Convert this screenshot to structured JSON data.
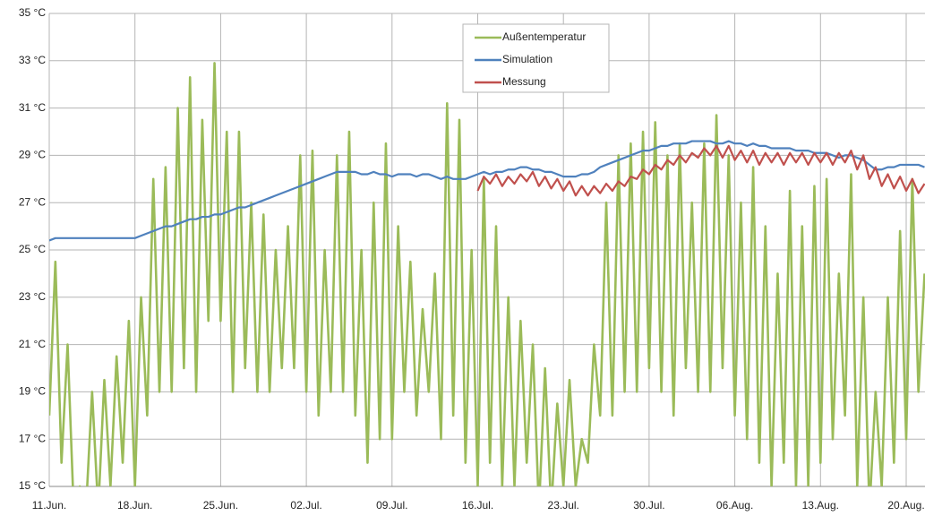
{
  "chart_data": {
    "type": "line",
    "categories": [
      "11.Jun.",
      null,
      null,
      null,
      null,
      null,
      null,
      null,
      null,
      null,
      null,
      null,
      null,
      null,
      "18.Jun.",
      null,
      null,
      null,
      null,
      null,
      null,
      null,
      null,
      null,
      null,
      null,
      null,
      null,
      "25.Jun.",
      null,
      null,
      null,
      null,
      null,
      null,
      null,
      null,
      null,
      null,
      null,
      null,
      null,
      "02.Jul.",
      null,
      null,
      null,
      null,
      null,
      null,
      null,
      null,
      null,
      null,
      null,
      null,
      null,
      "09.Jul.",
      null,
      null,
      null,
      null,
      null,
      null,
      null,
      null,
      null,
      null,
      null,
      null,
      null,
      "16.Jul.",
      null,
      null,
      null,
      null,
      null,
      null,
      null,
      null,
      null,
      null,
      null,
      null,
      null,
      "23.Jul.",
      null,
      null,
      null,
      null,
      null,
      null,
      null,
      null,
      null,
      null,
      null,
      null,
      null,
      "30.Jul.",
      null,
      null,
      null,
      null,
      null,
      null,
      null,
      null,
      null,
      null,
      null,
      null,
      null,
      "06.Aug.",
      null,
      null,
      null,
      null,
      null,
      null,
      null,
      null,
      null,
      null,
      null,
      null,
      null,
      "13.Aug.",
      null,
      null,
      null,
      null,
      null,
      null,
      null,
      null,
      null,
      null,
      null,
      null,
      null,
      "20.Aug.",
      null,
      null,
      null
    ],
    "series": [
      {
        "name": "Außentemperatur",
        "color": "#9bbb59",
        "values": [
          18,
          24.5,
          16,
          21,
          14,
          15,
          14,
          19,
          14,
          19.5,
          15,
          20.5,
          16,
          22,
          15,
          23,
          18,
          28,
          19,
          28.5,
          19,
          31,
          20,
          32.3,
          19,
          30.5,
          22,
          32.9,
          22,
          30,
          19,
          30,
          20,
          27,
          19,
          26.5,
          19,
          25,
          20,
          26,
          20,
          29,
          19,
          29.2,
          18,
          25,
          19,
          29,
          19,
          30,
          18,
          25,
          16,
          27,
          17,
          29.5,
          17,
          26,
          19,
          24.5,
          18,
          22.5,
          19,
          24,
          17,
          31.2,
          18,
          30.5,
          16,
          25,
          15,
          28,
          16,
          26,
          15,
          23,
          15,
          22,
          16,
          21,
          14,
          20,
          14,
          18.5,
          15,
          19.5,
          15,
          17,
          16,
          21,
          18,
          27,
          18,
          29,
          19,
          29.5,
          19,
          30,
          20,
          30.4,
          19,
          29,
          18,
          29.5,
          20,
          27,
          19,
          29.5,
          19,
          30.7,
          20,
          29,
          18,
          27,
          17,
          28.5,
          16,
          26,
          15,
          24,
          16,
          27.5,
          15,
          26,
          15,
          27.7,
          16,
          28,
          17,
          24,
          18,
          28.2,
          15,
          23,
          14,
          19,
          15,
          23,
          16,
          25.8,
          17,
          28,
          19,
          24
        ]
      },
      {
        "name": "Simulation",
        "color": "#4f81bd",
        "values": [
          25.4,
          25.5,
          25.5,
          25.5,
          25.5,
          25.5,
          25.5,
          25.5,
          25.5,
          25.5,
          25.5,
          25.5,
          25.5,
          25.5,
          25.5,
          25.6,
          25.7,
          25.8,
          25.9,
          26.0,
          26.0,
          26.1,
          26.2,
          26.3,
          26.3,
          26.4,
          26.4,
          26.5,
          26.5,
          26.6,
          26.7,
          26.8,
          26.8,
          26.9,
          27.0,
          27.1,
          27.2,
          27.3,
          27.4,
          27.5,
          27.6,
          27.7,
          27.8,
          27.9,
          28.0,
          28.1,
          28.2,
          28.3,
          28.3,
          28.3,
          28.3,
          28.2,
          28.2,
          28.3,
          28.2,
          28.2,
          28.1,
          28.2,
          28.2,
          28.2,
          28.1,
          28.2,
          28.2,
          28.1,
          28.0,
          28.1,
          28.0,
          28.0,
          28.0,
          28.1,
          28.2,
          28.3,
          28.2,
          28.3,
          28.3,
          28.4,
          28.4,
          28.5,
          28.5,
          28.4,
          28.4,
          28.3,
          28.3,
          28.2,
          28.1,
          28.1,
          28.1,
          28.2,
          28.2,
          28.3,
          28.5,
          28.6,
          28.7,
          28.8,
          28.9,
          29.0,
          29.1,
          29.2,
          29.2,
          29.3,
          29.4,
          29.4,
          29.5,
          29.5,
          29.5,
          29.6,
          29.6,
          29.6,
          29.6,
          29.5,
          29.5,
          29.6,
          29.5,
          29.5,
          29.4,
          29.5,
          29.4,
          29.4,
          29.3,
          29.3,
          29.3,
          29.3,
          29.2,
          29.2,
          29.2,
          29.1,
          29.1,
          29.1,
          29.0,
          28.9,
          29.0,
          29.0,
          28.9,
          28.8,
          28.6,
          28.4,
          28.4,
          28.5,
          28.5,
          28.6,
          28.6,
          28.6,
          28.6,
          28.5
        ]
      },
      {
        "name": "Messung",
        "color": "#c0504d",
        "values": [
          null,
          null,
          null,
          null,
          null,
          null,
          null,
          null,
          null,
          null,
          null,
          null,
          null,
          null,
          null,
          null,
          null,
          null,
          null,
          null,
          null,
          null,
          null,
          null,
          null,
          null,
          null,
          null,
          null,
          null,
          null,
          null,
          null,
          null,
          null,
          null,
          null,
          null,
          null,
          null,
          null,
          null,
          null,
          null,
          null,
          null,
          null,
          null,
          null,
          null,
          null,
          null,
          null,
          null,
          null,
          null,
          null,
          null,
          null,
          null,
          null,
          null,
          null,
          null,
          null,
          null,
          null,
          null,
          null,
          null,
          27.5,
          28.1,
          27.8,
          28.2,
          27.7,
          28.1,
          27.8,
          28.2,
          27.9,
          28.3,
          27.7,
          28.1,
          27.6,
          28.0,
          27.5,
          27.9,
          27.3,
          27.7,
          27.3,
          27.7,
          27.4,
          27.8,
          27.5,
          27.9,
          27.7,
          28.1,
          28.0,
          28.4,
          28.2,
          28.6,
          28.4,
          28.8,
          28.6,
          29.0,
          28.7,
          29.1,
          28.9,
          29.3,
          29.0,
          29.4,
          28.9,
          29.4,
          28.8,
          29.2,
          28.7,
          29.2,
          28.6,
          29.1,
          28.7,
          29.1,
          28.6,
          29.1,
          28.7,
          29.1,
          28.6,
          29.1,
          28.7,
          29.1,
          28.6,
          29.1,
          28.7,
          29.2,
          28.4,
          29.0,
          28.0,
          28.5,
          27.7,
          28.2,
          27.6,
          28.1,
          27.5,
          28.0,
          27.4,
          27.8
        ]
      }
    ],
    "ylim": [
      15,
      35
    ],
    "yticks": [
      {
        "value": 15,
        "label": "15 °C"
      },
      {
        "value": 17,
        "label": "17 °C"
      },
      {
        "value": 19,
        "label": "19 °C"
      },
      {
        "value": 21,
        "label": "21 °C"
      },
      {
        "value": 23,
        "label": "23 °C"
      },
      {
        "value": 25,
        "label": "25 °C"
      },
      {
        "value": 27,
        "label": "27 °C"
      },
      {
        "value": 29,
        "label": "29 °C"
      },
      {
        "value": 31,
        "label": "31 °C"
      },
      {
        "value": 33,
        "label": "33 °C"
      },
      {
        "value": 35,
        "label": "35 °C"
      }
    ],
    "grid": true,
    "legend": "top"
  }
}
